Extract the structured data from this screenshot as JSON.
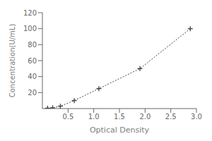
{
  "chart_data": {
    "type": "line",
    "xlabel": "Optical Density",
    "ylabel": "Concentration(U/mL)",
    "x": [
      0.1,
      0.2,
      0.35,
      0.62,
      1.1,
      1.9,
      2.88
    ],
    "values": [
      0.5,
      1.0,
      3.0,
      10.0,
      25.0,
      50.0,
      100.0
    ],
    "xlim": [
      0,
      3.0
    ],
    "ylim": [
      0,
      120
    ],
    "xticks": [
      0.5,
      {
        "value": 1.0,
        "label": "1.0"
      },
      1.5,
      {
        "value": 2.0,
        "label": "2.0"
      },
      2.5,
      {
        "value": 3.0,
        "label": "3.0"
      }
    ],
    "yticks": [
      20,
      40,
      60,
      80,
      100,
      120
    ],
    "color": "#444444",
    "marker": "plus",
    "line_style": "dotted",
    "grid": false
  }
}
